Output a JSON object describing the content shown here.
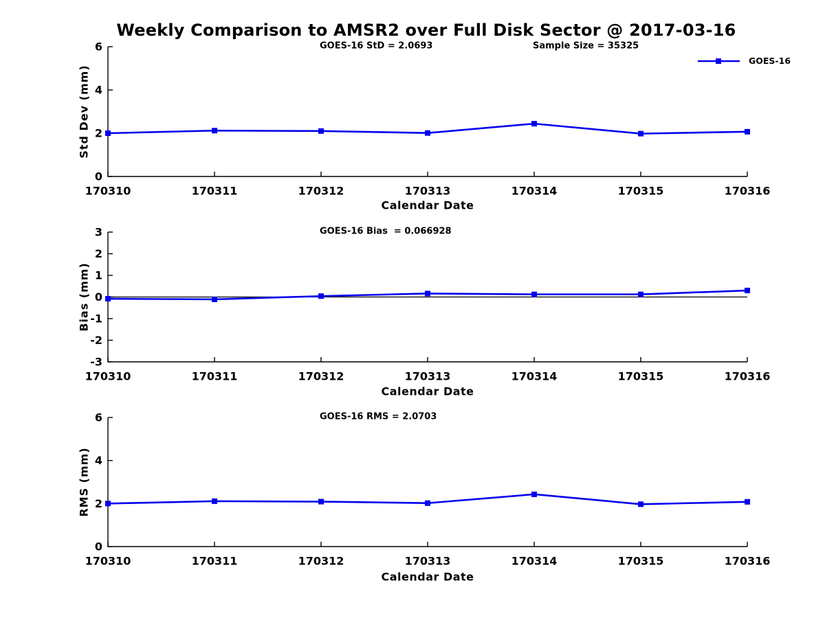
{
  "figure": {
    "title": "Weekly Comparison to AMSR2 over Full Disk Sector @ 2017-03-16",
    "background": "#ffffff",
    "colors": {
      "series": "#0000ee",
      "axis": "#000000",
      "zero_line": "#000000"
    },
    "legend": {
      "label": "GOES-16",
      "marker": "square",
      "position": "top-right"
    }
  },
  "chart_data": [
    {
      "type": "line",
      "id": "std-dev",
      "annotations": [
        "GOES-16 StD = 2.0693",
        "Sample Size = 35325"
      ],
      "ylabel": "Std Dev (mm)",
      "xlabel": "Calendar Date",
      "ylim": [
        0,
        6
      ],
      "yticks": [
        0,
        2,
        4,
        6
      ],
      "categories": [
        "170310",
        "170311",
        "170312",
        "170313",
        "170314",
        "170315",
        "170316"
      ],
      "series": [
        {
          "name": "GOES-16",
          "marker": "square",
          "values": [
            2.0,
            2.12,
            2.1,
            2.01,
            2.44,
            1.98,
            2.07
          ]
        }
      ],
      "zero_line": false,
      "grid": false
    },
    {
      "type": "line",
      "id": "bias",
      "annotations": [
        "GOES-16 Bias  = 0.066928"
      ],
      "ylabel": "Bias (mm)",
      "xlabel": "Calendar Date",
      "ylim": [
        -3,
        3
      ],
      "yticks": [
        -3,
        -2,
        -1,
        0,
        1,
        2,
        3
      ],
      "categories": [
        "170310",
        "170311",
        "170312",
        "170313",
        "170314",
        "170315",
        "170316"
      ],
      "series": [
        {
          "name": "GOES-16",
          "marker": "square",
          "values": [
            -0.08,
            -0.11,
            0.04,
            0.16,
            0.12,
            0.12,
            0.3
          ]
        }
      ],
      "zero_line": true,
      "grid": false
    },
    {
      "type": "line",
      "id": "rms",
      "annotations": [
        "GOES-16 RMS = 2.0703"
      ],
      "ylabel": "RMS (mm)",
      "xlabel": "Calendar Date",
      "ylim": [
        0,
        6
      ],
      "yticks": [
        0,
        2,
        4,
        6
      ],
      "categories": [
        "170310",
        "170311",
        "170312",
        "170313",
        "170314",
        "170315",
        "170316"
      ],
      "series": [
        {
          "name": "GOES-16",
          "marker": "square",
          "values": [
            2.0,
            2.11,
            2.09,
            2.02,
            2.43,
            1.97,
            2.08
          ]
        }
      ],
      "zero_line": false,
      "grid": false
    }
  ]
}
